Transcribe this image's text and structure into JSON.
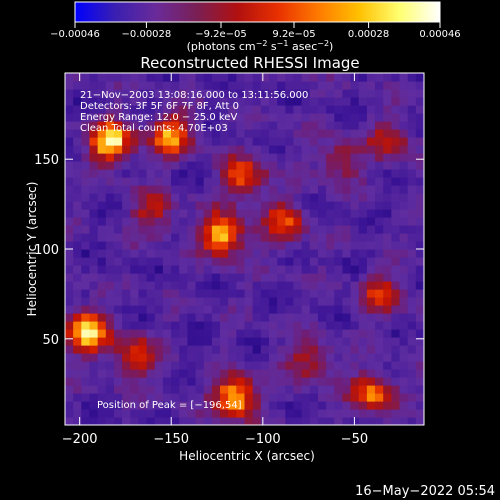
{
  "colorbar": {
    "tick_labels": [
      "−0.00046",
      "−0.00028",
      "−9.2e−05",
      "9.2e−05",
      "0.00028",
      "0.00046"
    ],
    "tick_values": [
      -0.00046,
      -0.00028,
      -9.2e-05,
      9.2e-05,
      0.00028,
      0.00046
    ],
    "range": [
      -0.00046,
      0.00046
    ],
    "unit_parts": [
      "(photons cm",
      "−2",
      " s",
      "−1",
      " asec",
      "−2",
      ")"
    ],
    "stops": [
      "#0000ff",
      "#3a1fb0",
      "#6a2b9a",
      "#7a1f55",
      "#b01010",
      "#e83000",
      "#ff7a00",
      "#ffc000",
      "#ffff70",
      "#ffffff"
    ]
  },
  "chart_data": {
    "type": "heatmap",
    "title": "Reconstructed RHESSI Image",
    "xlabel": "Heliocentric X (arcsec)",
    "ylabel": "Heliocentric Y (arcsec)",
    "xlim": [
      -208,
      -12
    ],
    "ylim": [
      2,
      198
    ],
    "x_ticks": [
      -200,
      -150,
      -100,
      -50
    ],
    "x_tick_labels": [
      "−200",
      "−150",
      "−100",
      "−50"
    ],
    "y_ticks": [
      50,
      100,
      150
    ],
    "y_tick_labels": [
      "50",
      "100",
      "150"
    ],
    "annotations": [
      "21−Nov−2003 13:08:16.000 to 13:11:56.000",
      "Detectors: 3F 5F 6F 7F 8F, Att 0",
      "Energy Range: 12.0 − 25.0 keV",
      "Clean     Total counts: 4.70E+03"
    ],
    "peak_label": "Position of Peak = [−196,54]",
    "peak": [
      -196,
      54
    ],
    "blobs": [
      {
        "x": -183,
        "y": 160,
        "amp": 1.0
      },
      {
        "x": -150,
        "y": 164,
        "amp": 0.8
      },
      {
        "x": -110,
        "y": 140,
        "amp": 0.7
      },
      {
        "x": -122,
        "y": 108,
        "amp": 0.95
      },
      {
        "x": -88,
        "y": 115,
        "amp": 0.6
      },
      {
        "x": -58,
        "y": 150,
        "amp": 0.45
      },
      {
        "x": -30,
        "y": 160,
        "amp": 0.5
      },
      {
        "x": -35,
        "y": 75,
        "amp": 0.55
      },
      {
        "x": -40,
        "y": 20,
        "amp": 0.75
      },
      {
        "x": -75,
        "y": 38,
        "amp": 0.5
      },
      {
        "x": -115,
        "y": 18,
        "amp": 1.0
      },
      {
        "x": -196,
        "y": 54,
        "amp": 1.0
      },
      {
        "x": -170,
        "y": 40,
        "amp": 0.65
      },
      {
        "x": -160,
        "y": 120,
        "amp": 0.5
      }
    ]
  },
  "footer_date": "16−May−2022 05:54"
}
